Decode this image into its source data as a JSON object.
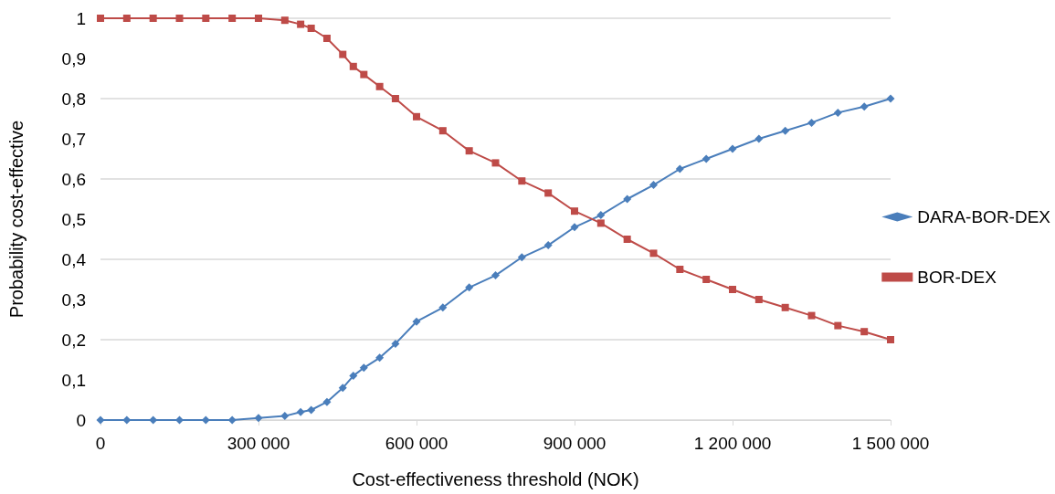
{
  "chart_data": {
    "type": "line",
    "xlabel": "Cost-effectiveness threshold (NOK)",
    "ylabel": "Probability cost-effective",
    "x": [
      0,
      50000,
      100000,
      150000,
      200000,
      250000,
      300000,
      350000,
      380000,
      400000,
      430000,
      460000,
      480000,
      500000,
      530000,
      560000,
      600000,
      650000,
      700000,
      750000,
      800000,
      850000,
      900000,
      950000,
      1000000,
      1050000,
      1100000,
      1150000,
      1200000,
      1250000,
      1300000,
      1350000,
      1400000,
      1450000,
      1500000
    ],
    "series": [
      {
        "name": "DARA-BOR-DEX",
        "color": "#4a7ebb",
        "marker": "diamond",
        "values": [
          0,
          0,
          0,
          0,
          0,
          0,
          0.005,
          0.01,
          0.02,
          0.025,
          0.045,
          0.08,
          0.11,
          0.13,
          0.155,
          0.19,
          0.245,
          0.28,
          0.33,
          0.36,
          0.405,
          0.435,
          0.48,
          0.51,
          0.55,
          0.585,
          0.625,
          0.65,
          0.675,
          0.7,
          0.72,
          0.74,
          0.765,
          0.78,
          0.8
        ]
      },
      {
        "name": "BOR-DEX",
        "color": "#be4b48",
        "marker": "square",
        "values": [
          1,
          1,
          1,
          1,
          1,
          1,
          1,
          0.995,
          0.985,
          0.975,
          0.95,
          0.91,
          0.88,
          0.86,
          0.83,
          0.8,
          0.755,
          0.72,
          0.67,
          0.64,
          0.595,
          0.565,
          0.52,
          0.49,
          0.45,
          0.415,
          0.375,
          0.35,
          0.325,
          0.3,
          0.28,
          0.26,
          0.235,
          0.22,
          0.2
        ]
      }
    ],
    "xlim": [
      0,
      1500000
    ],
    "xticks": [
      0,
      {
        "value": 300000,
        "label": "300 000"
      },
      {
        "value": 600000,
        "label": "600 000"
      },
      {
        "value": 900000,
        "label": "900 000"
      },
      {
        "value": 1200000,
        "label": "1 200 000"
      },
      {
        "value": 1500000,
        "label": "1 500 000"
      }
    ],
    "ylim": [
      0,
      1
    ],
    "yticks": [
      0,
      {
        "value": 0.1,
        "label": "0,1"
      },
      {
        "value": 0.2,
        "label": "0,2"
      },
      {
        "value": 0.3,
        "label": "0,3"
      },
      {
        "value": 0.4,
        "label": "0,4"
      },
      {
        "value": 0.5,
        "label": "0,5"
      },
      {
        "value": 0.6,
        "label": "0,6"
      },
      {
        "value": 0.7,
        "label": "0,7"
      },
      {
        "value": 0.8,
        "label": "0,8"
      },
      {
        "value": 0.9,
        "label": "0,9"
      },
      1
    ],
    "grid": "y",
    "legend": "right"
  }
}
